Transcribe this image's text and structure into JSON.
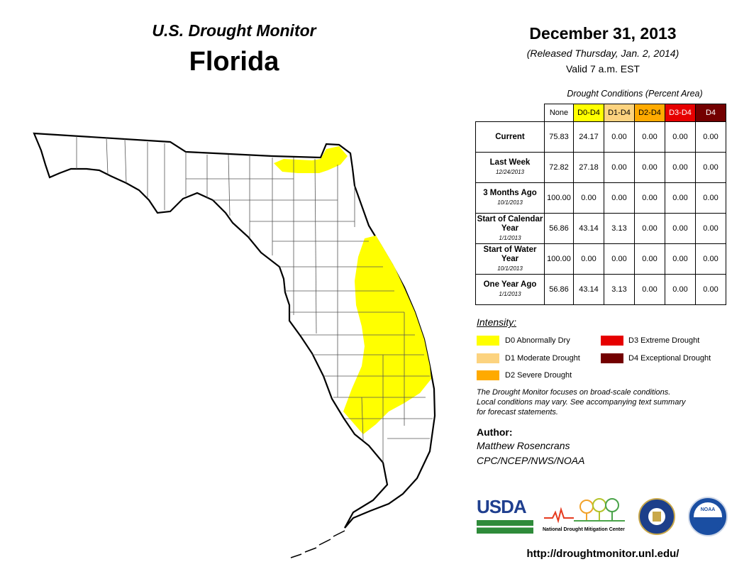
{
  "header": {
    "monitor_title": "U.S. Drought Monitor",
    "state": "Florida",
    "date": "December 31, 2013",
    "released": "(Released Thursday, Jan. 2, 2014)",
    "valid": "Valid 7 a.m. EST"
  },
  "table": {
    "caption": "Drought Conditions (Percent Area)",
    "columns": [
      "None",
      "D0-D4",
      "D1-D4",
      "D2-D4",
      "D3-D4",
      "D4"
    ],
    "column_colors": [
      "#ffffff",
      "#ffff00",
      "#fcd37f",
      "#ffaa00",
      "#e60000",
      "#730000"
    ],
    "column_text_colors": [
      "#000000",
      "#000000",
      "#000000",
      "#000000",
      "#ffffff",
      "#ffffff"
    ],
    "rows": [
      {
        "label": "Current",
        "sub": "",
        "values": [
          "75.83",
          "24.17",
          "0.00",
          "0.00",
          "0.00",
          "0.00"
        ]
      },
      {
        "label": "Last Week",
        "sub": "12/24/2013",
        "values": [
          "72.82",
          "27.18",
          "0.00",
          "0.00",
          "0.00",
          "0.00"
        ]
      },
      {
        "label": "3 Months Ago",
        "sub": "10/1/2013",
        "values": [
          "100.00",
          "0.00",
          "0.00",
          "0.00",
          "0.00",
          "0.00"
        ]
      },
      {
        "label": "Start of Calendar Year",
        "sub": "1/1/2013",
        "values": [
          "56.86",
          "43.14",
          "3.13",
          "0.00",
          "0.00",
          "0.00"
        ]
      },
      {
        "label": "Start of Water Year",
        "sub": "10/1/2013",
        "values": [
          "100.00",
          "0.00",
          "0.00",
          "0.00",
          "0.00",
          "0.00"
        ]
      },
      {
        "label": "One Year Ago",
        "sub": "1/1/2013",
        "values": [
          "56.86",
          "43.14",
          "3.13",
          "0.00",
          "0.00",
          "0.00"
        ]
      }
    ]
  },
  "legend": {
    "title": "Intensity:",
    "items": [
      {
        "label": "D0 Abnormally Dry",
        "color": "#ffff00"
      },
      {
        "label": "D1 Moderate Drought",
        "color": "#fcd37f"
      },
      {
        "label": "D2 Severe Drought",
        "color": "#ffaa00"
      },
      {
        "label": "D3 Extreme Drought",
        "color": "#e60000"
      },
      {
        "label": "D4 Exceptional Drought",
        "color": "#730000"
      }
    ]
  },
  "note": {
    "line1": "The Drought Monitor focuses on broad-scale conditions.",
    "line2": "Local conditions may vary. See accompanying text summary",
    "line3": "for forecast statements."
  },
  "author": {
    "label": "Author:",
    "name": "Matthew Rosencrans",
    "org": "CPC/NCEP/NWS/NOAA"
  },
  "logos": {
    "usda": "USDA",
    "ndmc": "National Drought Mitigation Center",
    "noaa": "NOAA"
  },
  "url": "http://droughtmonitor.unl.edu/",
  "map": {
    "d0_color": "#ffff00",
    "land_color": "#ffffff",
    "border_color": "#000000",
    "county_line_color": "#555555"
  }
}
